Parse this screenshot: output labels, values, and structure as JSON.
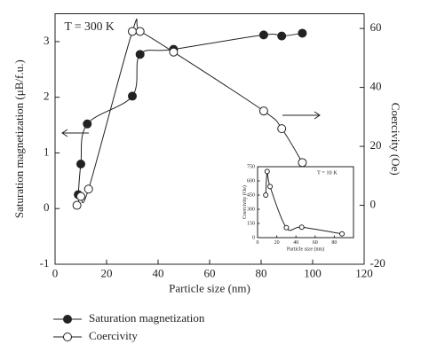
{
  "chart_data": [
    {
      "type": "line",
      "annotation": "T = 300 K",
      "x_label": "Particle size (nm)",
      "y_label": "Saturation magnetization (μB/f.u.)",
      "y2_label": "Coercivity (Oe)",
      "xlim": [
        0,
        120
      ],
      "xticks": [
        0,
        20,
        40,
        60,
        80,
        100,
        120
      ],
      "ylim": [
        -1,
        3.5
      ],
      "yticks": [
        -1,
        0,
        1,
        2,
        3
      ],
      "y2lim": [
        -20,
        65
      ],
      "y2ticks": [
        -20,
        0,
        20,
        40,
        60
      ],
      "legend": "bottom",
      "series": [
        {
          "name": "Saturation magnetization",
          "color": "#222222",
          "marker": "filled",
          "x": [
            9,
            10,
            12.5,
            30,
            33,
            46,
            81,
            88,
            96
          ],
          "values": [
            0.25,
            0.8,
            1.52,
            2.02,
            2.77,
            2.86,
            3.12,
            3.1,
            3.15
          ]
        },
        {
          "name": "Coercivity",
          "color": "#222222",
          "marker": "open",
          "axis": "y2",
          "x": [
            8.5,
            10,
            13,
            30,
            33,
            46,
            81,
            88,
            96
          ],
          "values": [
            0,
            3,
            5.5,
            59,
            59,
            52,
            32,
            26,
            14.5
          ]
        }
      ]
    },
    {
      "type": "line",
      "annotation": "T = 10 K",
      "x_label": "Particle size (nm)",
      "y_label": "Coercivity (Oe)",
      "xlim": [
        0,
        100
      ],
      "xticks": [
        0,
        20,
        40,
        60,
        80
      ],
      "ylim": [
        0,
        750
      ],
      "yticks": [
        0,
        150,
        300,
        450,
        600,
        750
      ],
      "series": [
        {
          "color": "#222222",
          "marker": "open",
          "x": [
            8.5,
            10,
            13,
            30,
            46,
            88
          ],
          "values": [
            450,
            700,
            540,
            105,
            110,
            40
          ]
        }
      ]
    }
  ]
}
